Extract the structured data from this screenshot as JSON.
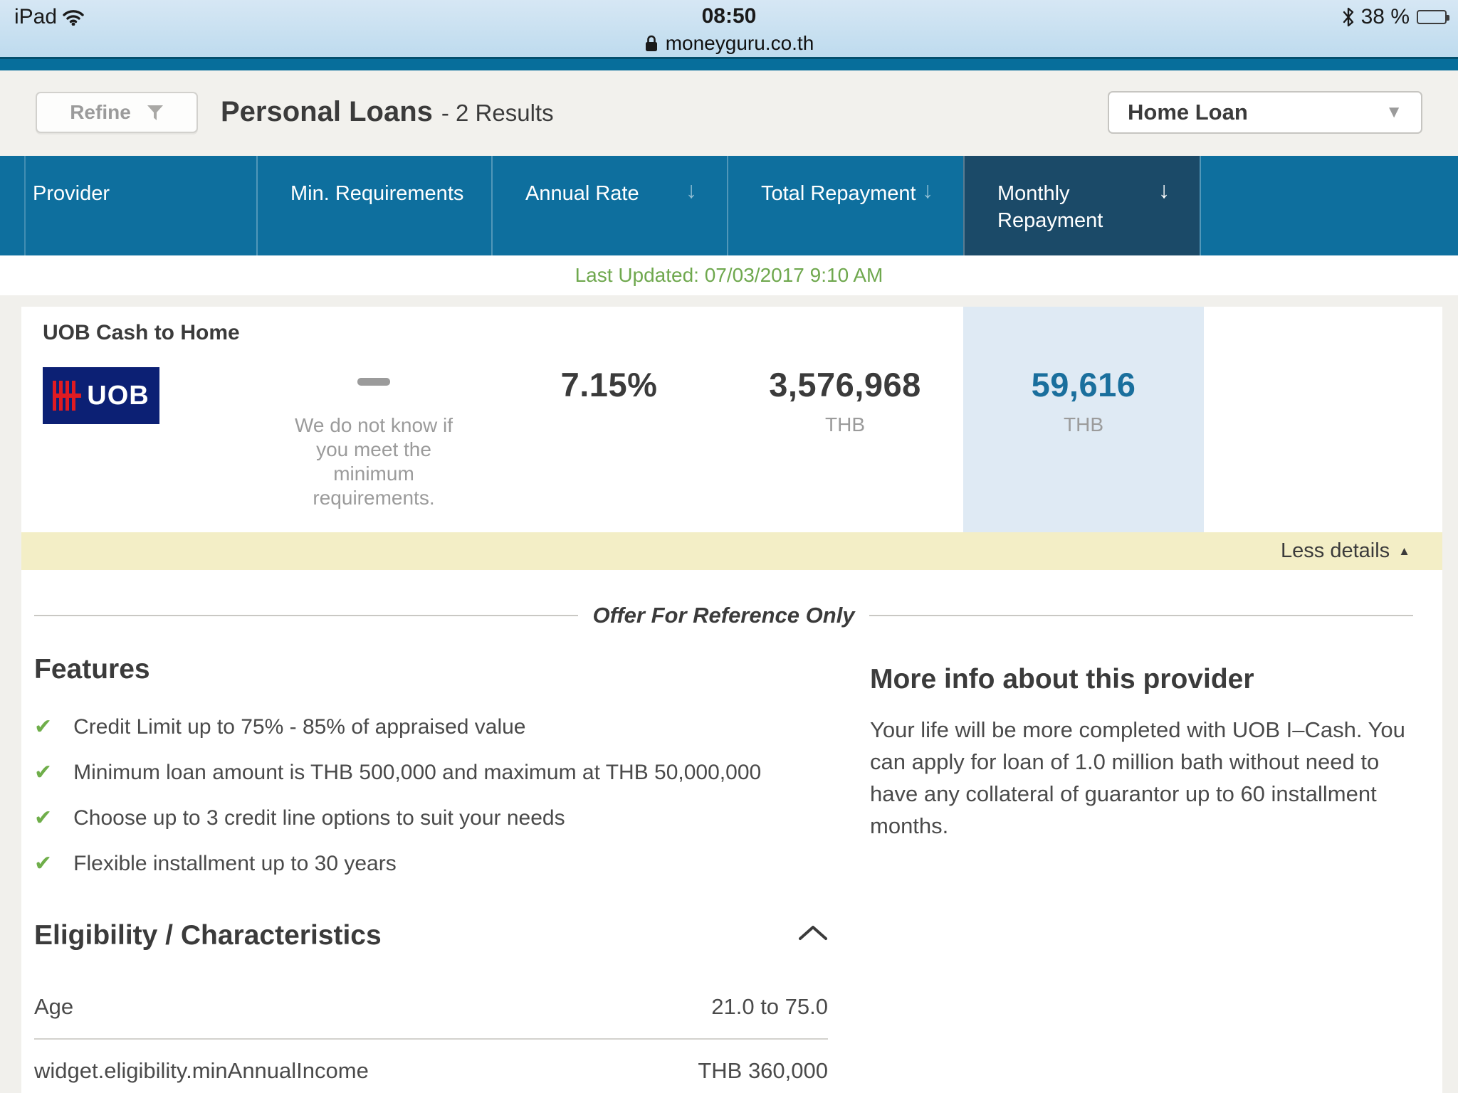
{
  "status_bar": {
    "carrier": "iPad",
    "time": "08:50",
    "battery_label": "38 %",
    "battery_percent": 38,
    "url": "moneyguru.co.th"
  },
  "header": {
    "refine_label": "Refine",
    "title": "Personal Loans",
    "results_suffix": "- 2 Results",
    "category_selected": "Home Loan"
  },
  "table": {
    "columns": [
      {
        "label": "Provider",
        "has_sort": false,
        "active": false
      },
      {
        "label": "Min. Requirements",
        "has_sort": false,
        "active": false
      },
      {
        "label": "Annual Rate",
        "has_sort": true,
        "active": false
      },
      {
        "label": "Total Repayment",
        "has_sort": true,
        "active": false
      },
      {
        "label": "Monthly Repayment",
        "has_sort": true,
        "active": true
      }
    ],
    "last_updated": "Last Updated: 07/03/2017 9:10 AM"
  },
  "offer": {
    "name": "UOB Cash to Home",
    "provider": "UOB",
    "min_requirements_note": "We do not know if you meet the minimum requirements.",
    "annual_rate": "7.15%",
    "total_repayment": "3,576,968",
    "total_repayment_currency": "THB",
    "monthly_repayment": "59,616",
    "monthly_repayment_currency": "THB",
    "less_details_label": "Less details",
    "reference_note": "Offer For Reference Only"
  },
  "features": {
    "heading": "Features",
    "items": [
      "Credit Limit up to 75% - 85% of appraised value",
      "Minimum loan amount is THB 500,000 and maximum at THB 50,000,000",
      "Choose up to 3 credit line options to suit your needs",
      "Flexible installment up to 30 years"
    ]
  },
  "more_info": {
    "heading": "More info about this provider",
    "body": "Your life will be more completed with UOB I–Cash. You can apply for loan of 1.0 million bath without need to have any collateral of guarantor up to 60 installment months."
  },
  "eligibility": {
    "heading": "Eligibility / Characteristics",
    "rows": [
      {
        "label": "Age",
        "value": "21.0 to 75.0"
      },
      {
        "label": "widget.eligibility.minAnnualIncome",
        "value": "THB 360,000"
      }
    ]
  },
  "icons": {
    "sort_down": "↓",
    "dropdown_caret": "▼",
    "check": "✔",
    "collapse_triangle": "▲"
  },
  "colors": {
    "header_blue": "#0e6f9e",
    "active_column_blue": "#1b4a68",
    "highlight_cell": "#dfeaf4",
    "accent_blue": "#1a6f9d",
    "green": "#6fa84e",
    "less_details_bar": "#f3eec6",
    "uob_navy": "#0c2074",
    "uob_red": "#e11b22"
  }
}
